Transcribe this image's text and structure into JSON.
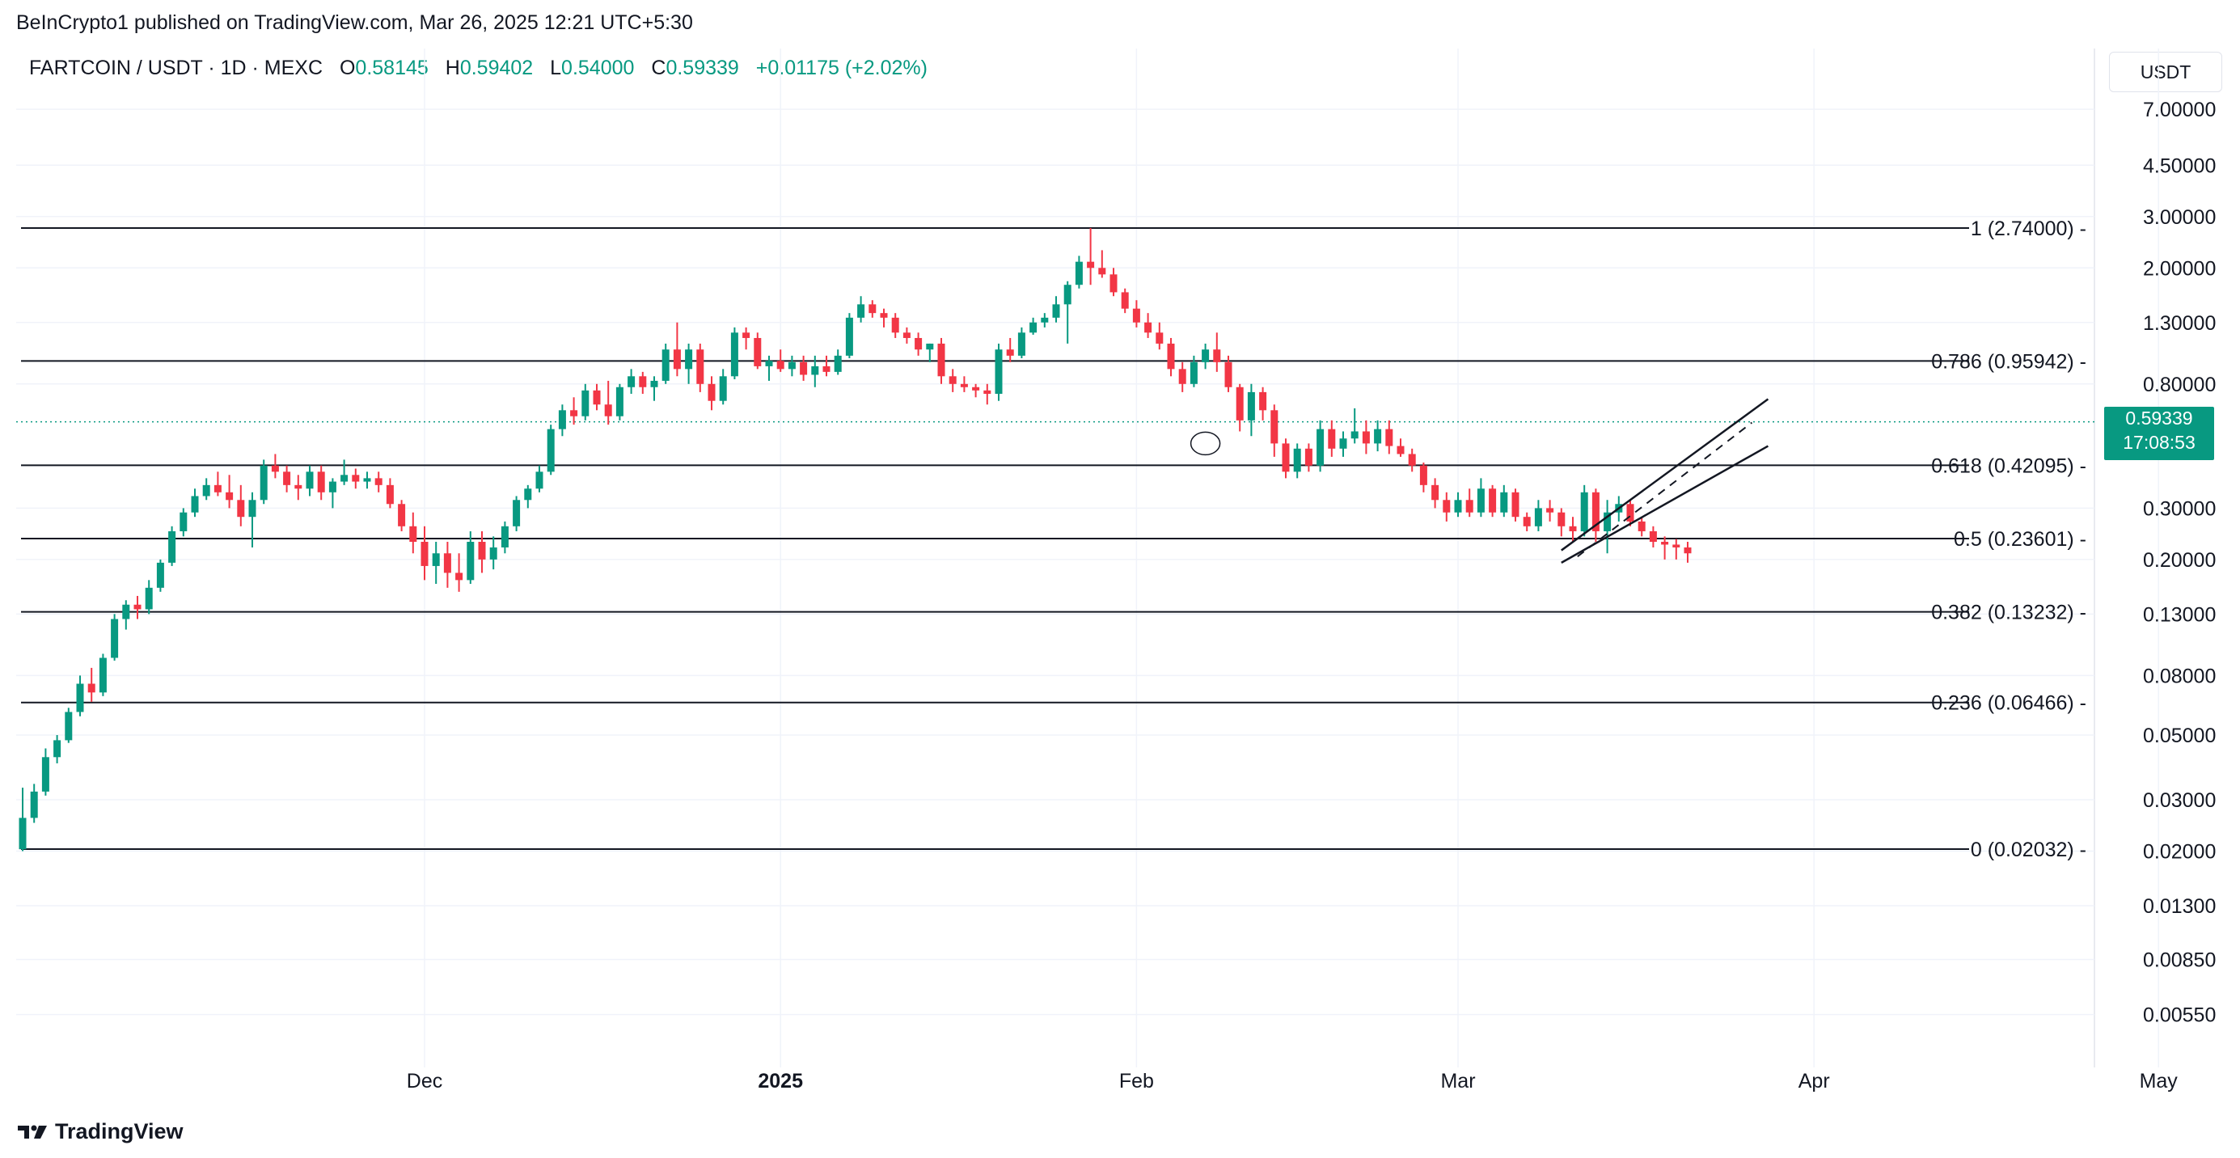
{
  "publisher_text": "BeInCrypto1 published on TradingView.com, Mar 26, 2025 12:21 UTC+5:30",
  "header": {
    "symbol": "FARTCOIN / USDT · 1D · MEXC",
    "open_label": "O",
    "open": "0.58145",
    "high_label": "H",
    "high": "0.59402",
    "low_label": "L",
    "low": "0.54000",
    "close_label": "C",
    "close": "0.59339",
    "change": "+0.01175 (+2.02%)"
  },
  "currency": "USDT",
  "price_tag": {
    "price": "0.59339",
    "countdown": "17:08:53"
  },
  "footer": {
    "brand": "TradingView",
    "logo_icon": "tradingview-logo-icon"
  },
  "colors": {
    "up": "#089981",
    "down": "#f23645",
    "text": "#131722",
    "grid": "#f0f3fa"
  },
  "chart_data": {
    "type": "candlestick",
    "y_scale": "log",
    "y_ticks": [
      "7.00000",
      "4.50000",
      "3.00000",
      "2.00000",
      "1.30000",
      "0.80000",
      "0.30000",
      "0.20000",
      "0.13000",
      "0.08000",
      "0.05000",
      "0.03000",
      "0.02000",
      "0.01300",
      "0.00850",
      "0.00550"
    ],
    "y_tick_values": [
      7.0,
      4.5,
      3.0,
      2.0,
      1.3,
      0.8,
      0.3,
      0.2,
      0.13,
      0.08,
      0.05,
      0.03,
      0.02,
      0.013,
      0.0085,
      0.0055
    ],
    "x_ticks": [
      {
        "label": "Dec",
        "date": "2024-12-01",
        "bold": false
      },
      {
        "label": "2025",
        "date": "2025-01-01",
        "bold": true
      },
      {
        "label": "Feb",
        "date": "2025-02-01",
        "bold": false
      },
      {
        "label": "Mar",
        "date": "2025-03-01",
        "bold": false
      },
      {
        "label": "Apr",
        "date": "2025-04-01",
        "bold": false
      },
      {
        "label": "May",
        "date": "2025-05-01",
        "bold": false
      }
    ],
    "fib_levels": [
      {
        "label": "1 (2.74000)",
        "value": 2.74
      },
      {
        "label": "0.786 (0.95942)",
        "value": 0.95942
      },
      {
        "label": "0.618 (0.42095)",
        "value": 0.42095
      },
      {
        "label": "0.5 (0.23601)",
        "value": 0.23601
      },
      {
        "label": "0.382 (0.13232)",
        "value": 0.13232
      },
      {
        "label": "0.236 (0.06466)",
        "value": 0.06466
      },
      {
        "label": "0 (0.02032)",
        "value": 0.02032
      }
    ],
    "last_price": 0.59339,
    "channel": {
      "start_date": "2025-03-10",
      "end_date": "2025-03-28",
      "lower_start": 0.195,
      "lower_end": 0.49,
      "upper_start": 0.215,
      "upper_end": 0.71
    },
    "candles": [
      [
        "2024-10-27",
        0.0203,
        0.033,
        0.02,
        0.026
      ],
      [
        "2024-10-28",
        0.026,
        0.034,
        0.025,
        0.032
      ],
      [
        "2024-10-29",
        0.032,
        0.045,
        0.031,
        0.042
      ],
      [
        "2024-10-30",
        0.042,
        0.05,
        0.04,
        0.048
      ],
      [
        "2024-10-31",
        0.048,
        0.062,
        0.047,
        0.06
      ],
      [
        "2024-11-01",
        0.06,
        0.08,
        0.058,
        0.075
      ],
      [
        "2024-11-02",
        0.075,
        0.085,
        0.065,
        0.07
      ],
      [
        "2024-11-03",
        0.07,
        0.095,
        0.068,
        0.092
      ],
      [
        "2024-11-04",
        0.092,
        0.13,
        0.09,
        0.125
      ],
      [
        "2024-11-05",
        0.125,
        0.145,
        0.115,
        0.14
      ],
      [
        "2024-11-06",
        0.14,
        0.15,
        0.125,
        0.135
      ],
      [
        "2024-11-07",
        0.135,
        0.17,
        0.13,
        0.16
      ],
      [
        "2024-11-08",
        0.16,
        0.2,
        0.155,
        0.195
      ],
      [
        "2024-11-09",
        0.195,
        0.26,
        0.19,
        0.25
      ],
      [
        "2024-11-10",
        0.25,
        0.3,
        0.24,
        0.29
      ],
      [
        "2024-11-11",
        0.29,
        0.35,
        0.28,
        0.33
      ],
      [
        "2024-11-12",
        0.33,
        0.38,
        0.32,
        0.36
      ],
      [
        "2024-11-13",
        0.36,
        0.4,
        0.33,
        0.34
      ],
      [
        "2024-11-14",
        0.34,
        0.39,
        0.3,
        0.32
      ],
      [
        "2024-11-15",
        0.32,
        0.36,
        0.26,
        0.28
      ],
      [
        "2024-11-16",
        0.28,
        0.34,
        0.22,
        0.32
      ],
      [
        "2024-11-17",
        0.32,
        0.44,
        0.31,
        0.42
      ],
      [
        "2024-11-18",
        0.42,
        0.46,
        0.38,
        0.4
      ],
      [
        "2024-11-19",
        0.4,
        0.42,
        0.34,
        0.36
      ],
      [
        "2024-11-20",
        0.36,
        0.39,
        0.32,
        0.35
      ],
      [
        "2024-11-21",
        0.35,
        0.42,
        0.33,
        0.4
      ],
      [
        "2024-11-22",
        0.4,
        0.42,
        0.32,
        0.34
      ],
      [
        "2024-11-23",
        0.34,
        0.38,
        0.3,
        0.37
      ],
      [
        "2024-11-24",
        0.37,
        0.44,
        0.36,
        0.39
      ],
      [
        "2024-11-25",
        0.39,
        0.41,
        0.35,
        0.37
      ],
      [
        "2024-11-26",
        0.37,
        0.4,
        0.35,
        0.38
      ],
      [
        "2024-11-27",
        0.38,
        0.4,
        0.34,
        0.36
      ],
      [
        "2024-11-28",
        0.36,
        0.38,
        0.3,
        0.31
      ],
      [
        "2024-11-29",
        0.31,
        0.32,
        0.25,
        0.26
      ],
      [
        "2024-11-30",
        0.26,
        0.29,
        0.21,
        0.23
      ],
      [
        "2024-12-01",
        0.23,
        0.26,
        0.17,
        0.19
      ],
      [
        "2024-12-02",
        0.19,
        0.23,
        0.165,
        0.21
      ],
      [
        "2024-12-03",
        0.21,
        0.23,
        0.16,
        0.18
      ],
      [
        "2024-12-04",
        0.18,
        0.21,
        0.155,
        0.17
      ],
      [
        "2024-12-05",
        0.17,
        0.25,
        0.165,
        0.23
      ],
      [
        "2024-12-06",
        0.23,
        0.25,
        0.18,
        0.2
      ],
      [
        "2024-12-07",
        0.2,
        0.24,
        0.185,
        0.22
      ],
      [
        "2024-12-08",
        0.22,
        0.27,
        0.21,
        0.26
      ],
      [
        "2024-12-09",
        0.26,
        0.33,
        0.25,
        0.32
      ],
      [
        "2024-12-10",
        0.32,
        0.36,
        0.3,
        0.35
      ],
      [
        "2024-12-11",
        0.35,
        0.42,
        0.34,
        0.4
      ],
      [
        "2024-12-12",
        0.4,
        0.58,
        0.39,
        0.56
      ],
      [
        "2024-12-13",
        0.56,
        0.68,
        0.53,
        0.65
      ],
      [
        "2024-12-14",
        0.65,
        0.72,
        0.58,
        0.62
      ],
      [
        "2024-12-15",
        0.62,
        0.8,
        0.6,
        0.76
      ],
      [
        "2024-12-16",
        0.76,
        0.8,
        0.65,
        0.68
      ],
      [
        "2024-12-17",
        0.68,
        0.82,
        0.58,
        0.62
      ],
      [
        "2024-12-18",
        0.62,
        0.8,
        0.6,
        0.78
      ],
      [
        "2024-12-19",
        0.78,
        0.9,
        0.74,
        0.85
      ],
      [
        "2024-12-20",
        0.85,
        0.88,
        0.74,
        0.78
      ],
      [
        "2024-12-21",
        0.78,
        0.85,
        0.7,
        0.82
      ],
      [
        "2024-12-22",
        0.82,
        1.1,
        0.8,
        1.05
      ],
      [
        "2024-12-23",
        1.05,
        1.3,
        0.85,
        0.9
      ],
      [
        "2024-12-24",
        0.9,
        1.1,
        0.8,
        1.05
      ],
      [
        "2024-12-25",
        1.05,
        1.1,
        0.75,
        0.8
      ],
      [
        "2024-12-26",
        0.8,
        0.85,
        0.65,
        0.7
      ],
      [
        "2024-12-27",
        0.7,
        0.9,
        0.68,
        0.85
      ],
      [
        "2024-12-28",
        0.85,
        1.25,
        0.83,
        1.2
      ],
      [
        "2024-12-29",
        1.2,
        1.25,
        1.05,
        1.15
      ],
      [
        "2024-12-30",
        1.15,
        1.2,
        0.9,
        0.92
      ],
      [
        "2024-12-31",
        0.92,
        1.0,
        0.82,
        0.96
      ],
      [
        "2025-01-01",
        0.96,
        1.05,
        0.88,
        0.9
      ],
      [
        "2025-01-02",
        0.9,
        1.0,
        0.85,
        0.95
      ],
      [
        "2025-01-03",
        0.95,
        1.0,
        0.82,
        0.86
      ],
      [
        "2025-01-04",
        0.86,
        1.0,
        0.78,
        0.92
      ],
      [
        "2025-01-05",
        0.92,
        1.0,
        0.85,
        0.88
      ],
      [
        "2025-01-06",
        0.88,
        1.05,
        0.86,
        1.0
      ],
      [
        "2025-01-07",
        1.0,
        1.4,
        0.98,
        1.35
      ],
      [
        "2025-01-08",
        1.35,
        1.6,
        1.3,
        1.5
      ],
      [
        "2025-01-09",
        1.5,
        1.55,
        1.35,
        1.4
      ],
      [
        "2025-01-10",
        1.4,
        1.45,
        1.25,
        1.35
      ],
      [
        "2025-01-11",
        1.35,
        1.4,
        1.15,
        1.2
      ],
      [
        "2025-01-12",
        1.2,
        1.25,
        1.1,
        1.15
      ],
      [
        "2025-01-13",
        1.15,
        1.2,
        1.0,
        1.05
      ],
      [
        "2025-01-14",
        1.05,
        1.1,
        0.95,
        1.1
      ],
      [
        "2025-01-15",
        1.1,
        1.15,
        0.8,
        0.85
      ],
      [
        "2025-01-16",
        0.85,
        0.9,
        0.75,
        0.8
      ],
      [
        "2025-01-17",
        0.8,
        0.85,
        0.75,
        0.78
      ],
      [
        "2025-01-18",
        0.78,
        0.8,
        0.72,
        0.76
      ],
      [
        "2025-01-19",
        0.76,
        0.8,
        0.68,
        0.74
      ],
      [
        "2025-01-20",
        0.74,
        1.1,
        0.7,
        1.05
      ],
      [
        "2025-01-21",
        1.05,
        1.15,
        0.95,
        1.0
      ],
      [
        "2025-01-22",
        1.0,
        1.25,
        0.98,
        1.2
      ],
      [
        "2025-01-23",
        1.2,
        1.35,
        1.18,
        1.3
      ],
      [
        "2025-01-24",
        1.3,
        1.4,
        1.25,
        1.35
      ],
      [
        "2025-01-25",
        1.35,
        1.6,
        1.3,
        1.5
      ],
      [
        "2025-01-26",
        1.5,
        1.8,
        1.1,
        1.75
      ],
      [
        "2025-01-27",
        1.75,
        2.2,
        1.7,
        2.1
      ],
      [
        "2025-01-28",
        2.1,
        2.74,
        1.75,
        2.0
      ],
      [
        "2025-01-29",
        2.0,
        2.3,
        1.85,
        1.9
      ],
      [
        "2025-01-30",
        1.9,
        2.0,
        1.6,
        1.65
      ],
      [
        "2025-01-31",
        1.65,
        1.7,
        1.4,
        1.45
      ],
      [
        "2025-02-01",
        1.45,
        1.55,
        1.25,
        1.3
      ],
      [
        "2025-02-02",
        1.3,
        1.4,
        1.15,
        1.2
      ],
      [
        "2025-02-03",
        1.2,
        1.3,
        1.05,
        1.1
      ],
      [
        "2025-02-04",
        1.1,
        1.15,
        0.85,
        0.9
      ],
      [
        "2025-02-05",
        0.9,
        0.95,
        0.75,
        0.8
      ],
      [
        "2025-02-06",
        0.8,
        1.0,
        0.78,
        0.95
      ],
      [
        "2025-02-07",
        0.95,
        1.1,
        0.9,
        1.05
      ],
      [
        "2025-02-08",
        1.05,
        1.2,
        0.88,
        0.95
      ],
      [
        "2025-02-09",
        0.95,
        1.0,
        0.75,
        0.78
      ],
      [
        "2025-02-10",
        0.78,
        0.8,
        0.55,
        0.6
      ],
      [
        "2025-02-11",
        0.6,
        0.8,
        0.53,
        0.75
      ],
      [
        "2025-02-12",
        0.75,
        0.78,
        0.6,
        0.65
      ],
      [
        "2025-02-13",
        0.65,
        0.68,
        0.45,
        0.5
      ],
      [
        "2025-02-14",
        0.5,
        0.52,
        0.38,
        0.4
      ],
      [
        "2025-02-15",
        0.4,
        0.5,
        0.38,
        0.48
      ],
      [
        "2025-02-16",
        0.48,
        0.5,
        0.4,
        0.42
      ],
      [
        "2025-02-17",
        0.42,
        0.6,
        0.4,
        0.56
      ],
      [
        "2025-02-18",
        0.56,
        0.6,
        0.45,
        0.48
      ],
      [
        "2025-02-19",
        0.48,
        0.55,
        0.45,
        0.52
      ],
      [
        "2025-02-20",
        0.52,
        0.66,
        0.5,
        0.55
      ],
      [
        "2025-02-21",
        0.55,
        0.6,
        0.46,
        0.5
      ],
      [
        "2025-02-22",
        0.5,
        0.6,
        0.47,
        0.56
      ],
      [
        "2025-02-23",
        0.56,
        0.6,
        0.46,
        0.49
      ],
      [
        "2025-02-24",
        0.49,
        0.52,
        0.45,
        0.46
      ],
      [
        "2025-02-25",
        0.46,
        0.48,
        0.4,
        0.42
      ],
      [
        "2025-02-26",
        0.42,
        0.43,
        0.34,
        0.36
      ],
      [
        "2025-02-27",
        0.36,
        0.38,
        0.3,
        0.32
      ],
      [
        "2025-02-28",
        0.32,
        0.34,
        0.27,
        0.29
      ],
      [
        "2025-03-01",
        0.29,
        0.34,
        0.28,
        0.32
      ],
      [
        "2025-03-02",
        0.32,
        0.35,
        0.28,
        0.29
      ],
      [
        "2025-03-03",
        0.29,
        0.38,
        0.28,
        0.35
      ],
      [
        "2025-03-04",
        0.35,
        0.36,
        0.28,
        0.29
      ],
      [
        "2025-03-05",
        0.29,
        0.36,
        0.28,
        0.34
      ],
      [
        "2025-03-06",
        0.34,
        0.35,
        0.27,
        0.28
      ],
      [
        "2025-03-07",
        0.28,
        0.29,
        0.25,
        0.26
      ],
      [
        "2025-03-08",
        0.26,
        0.32,
        0.25,
        0.3
      ],
      [
        "2025-03-09",
        0.3,
        0.32,
        0.27,
        0.29
      ],
      [
        "2025-03-10",
        0.29,
        0.3,
        0.24,
        0.26
      ],
      [
        "2025-03-11",
        0.26,
        0.28,
        0.23,
        0.25
      ],
      [
        "2025-03-12",
        0.25,
        0.36,
        0.24,
        0.34
      ],
      [
        "2025-03-13",
        0.34,
        0.35,
        0.23,
        0.25
      ],
      [
        "2025-03-14",
        0.25,
        0.32,
        0.21,
        0.29
      ],
      [
        "2025-03-15",
        0.29,
        0.33,
        0.27,
        0.31
      ],
      [
        "2025-03-16",
        0.31,
        0.32,
        0.26,
        0.27
      ],
      [
        "2025-03-17",
        0.27,
        0.28,
        0.24,
        0.25
      ],
      [
        "2025-03-18",
        0.25,
        0.26,
        0.22,
        0.23
      ],
      [
        "2025-03-19",
        0.23,
        0.24,
        0.2,
        0.225
      ],
      [
        "2025-03-20",
        0.225,
        0.235,
        0.2,
        0.22
      ],
      [
        "2025-03-21",
        0.22,
        0.23,
        0.195,
        0.21
      ]
    ]
  }
}
